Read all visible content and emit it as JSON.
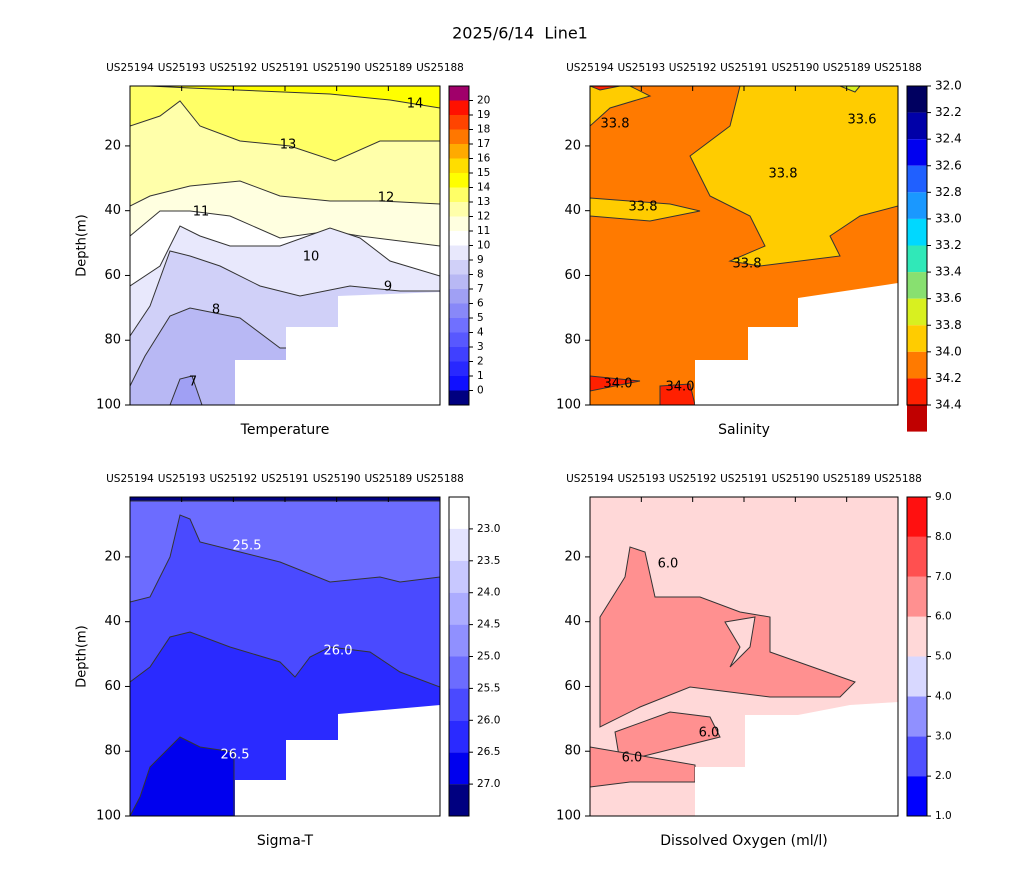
{
  "title": "2025/6/14  Line1",
  "chart_data": [
    {
      "type": "contour",
      "title": "Temperature",
      "ylabel": "Depth(m)",
      "stations": [
        "US25194",
        "US25193",
        "US25192",
        "US25191",
        "US25190",
        "US25189",
        "US25188"
      ],
      "ylim": [
        1.5,
        100
      ],
      "yticks": [
        20,
        40,
        60,
        80,
        100
      ],
      "y_inverted": true,
      "cticks": [
        0,
        1,
        2,
        3,
        4,
        5,
        6,
        7,
        8,
        9,
        10,
        11,
        12,
        13,
        14,
        15,
        16,
        17,
        18,
        19,
        20
      ],
      "cbar_reversed": false,
      "colors": [
        "#000080",
        "#1010ff",
        "#2828ff",
        "#4040ff",
        "#5858ff",
        "#7070ff",
        "#8888f8",
        "#a0a0f4",
        "#b8b8f4",
        "#d0d0f8",
        "#e8e8fc",
        "#ffffff",
        "#ffffe0",
        "#ffffaa",
        "#ffff66",
        "#ffff00",
        "#ffdd00",
        "#ffaa00",
        "#ff7700",
        "#ff4400",
        "#ff1100",
        "#a0006a"
      ],
      "contour_labels": [
        14,
        13,
        12,
        11,
        10,
        9,
        8,
        7
      ]
    },
    {
      "type": "contour",
      "title": "Salinity",
      "stations": [
        "US25194",
        "US25193",
        "US25192",
        "US25191",
        "US25190",
        "US25189",
        "US25188"
      ],
      "ylim": [
        1.5,
        100
      ],
      "yticks": [
        20,
        40,
        60,
        80,
        100
      ],
      "y_inverted": true,
      "cticks": [
        {
          "value": 32,
          "label": "32.0"
        },
        32.2,
        32.4,
        32.6,
        32.8,
        {
          "value": 33,
          "label": "33.0"
        },
        33.2,
        33.4,
        33.6,
        33.8,
        {
          "value": 34,
          "label": "34.0"
        },
        34.2,
        34.4
      ],
      "cbar_reversed": true,
      "colors": [
        "#000060",
        "#0000a8",
        "#0000f0",
        "#2060ff",
        "#1a98ff",
        "#00d8ff",
        "#30e8b8",
        "#88e070",
        "#d8f020",
        "#ffcc00",
        "#ff7a00",
        "#ff2000",
        "#c00000"
      ],
      "contour_labels": [
        "33.8",
        "33.6",
        "33.8",
        "33.8",
        "33.8",
        "34.0",
        "34.0"
      ]
    },
    {
      "type": "contour",
      "title": "Sigma-T",
      "ylabel": "Depth(m)",
      "stations": [
        "US25194",
        "US25193",
        "US25192",
        "US25191",
        "US25190",
        "US25189",
        "US25188"
      ],
      "ylim": [
        1.5,
        100
      ],
      "yticks": [
        20,
        40,
        60,
        80,
        100
      ],
      "y_inverted": true,
      "cticks": [
        {
          "value": 23,
          "label": "23.0"
        },
        23.5,
        {
          "value": 24,
          "label": "24.0"
        },
        24.5,
        {
          "value": 25,
          "label": "25.0"
        },
        25.5,
        {
          "value": 26,
          "label": "26.0"
        },
        26.5,
        {
          "value": 27,
          "label": "27.0"
        }
      ],
      "cbar_reversed": true,
      "colors": [
        "#ffffff",
        "#e4e4ff",
        "#c8c8ff",
        "#acacff",
        "#9090ff",
        "#6c6cff",
        "#4a4aff",
        "#2a2aff",
        "#0000ee",
        "#000080"
      ],
      "contour_labels": [
        "25.5",
        "26.0",
        "26.5"
      ]
    },
    {
      "type": "contour",
      "title": "Dissolved Oxygen (ml/l)",
      "stations": [
        "US25194",
        "US25193",
        "US25192",
        "US25191",
        "US25190",
        "US25189",
        "US25188"
      ],
      "ylim": [
        1.5,
        100
      ],
      "yticks": [
        20,
        40,
        60,
        80,
        100
      ],
      "y_inverted": true,
      "cticks": [
        {
          "value": 1,
          "label": "1.0"
        },
        {
          "value": 2,
          "label": "2.0"
        },
        {
          "value": 3,
          "label": "3.0"
        },
        {
          "value": 4,
          "label": "4.0"
        },
        {
          "value": 5,
          "label": "5.0"
        },
        {
          "value": 6,
          "label": "6.0"
        },
        {
          "value": 7,
          "label": "7.0"
        },
        {
          "value": 8,
          "label": "8.0"
        },
        {
          "value": 9,
          "label": "9.0"
        }
      ],
      "cbar_reversed": false,
      "colors": [
        "#0000ff",
        "#5050ff",
        "#9090ff",
        "#d8d8ff",
        "#ffd8d8",
        "#ff9090",
        "#ff5050",
        "#ff1010"
      ],
      "contour_labels": [
        "6.0",
        "6.0",
        "6.0"
      ]
    }
  ]
}
